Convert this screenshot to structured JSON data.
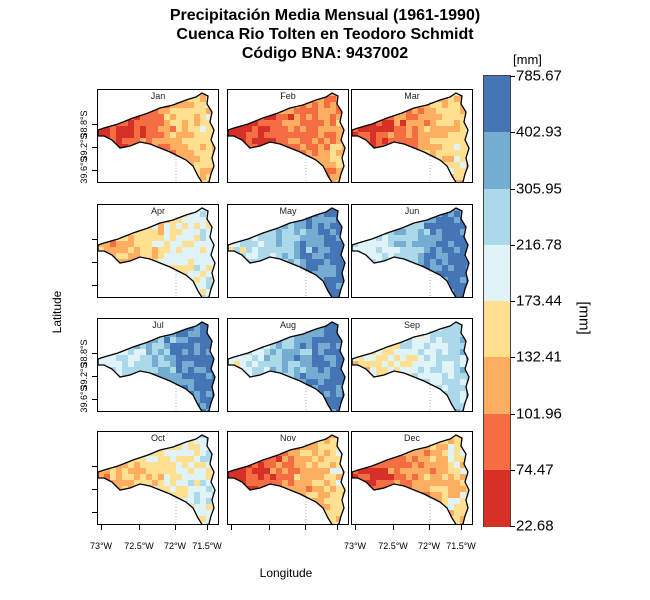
{
  "title": {
    "line1": "Precipitación Media Mensual (1961-1990)",
    "line2": "Cuenca Rio Tolten en Teodoro Schmidt",
    "line3": "Código BNA: 9437002"
  },
  "axes": {
    "xlabel": "Longitude",
    "ylabel": "Latitude",
    "x_ticks": [
      "73°W",
      "72.5°W",
      "72°W",
      "71.5°W"
    ],
    "y_ticks": [
      "39.6°S",
      "39.2°S",
      "38.8°S"
    ]
  },
  "legend": {
    "unit_top": "[mm]",
    "unit_side": "[mm]",
    "breaks": [
      "785.67",
      "402.93",
      "305.95",
      "216.78",
      "173.44",
      "132.41",
      "101.96",
      "74.47",
      "22.68"
    ],
    "colors": [
      "#4575b4",
      "#74add1",
      "#abd9e9",
      "#e0f3f8",
      "#fee090",
      "#fdae61",
      "#f46d43",
      "#d73027"
    ]
  },
  "chart_data": {
    "type": "heatmap",
    "title": "Precipitación Media Mensual (1961-1990) Cuenca Rio Tolten en Teodoro Schmidt Código BNA: 9437002",
    "xlabel": "Longitude",
    "ylabel": "Latitude",
    "color_scale_unit": "[mm]",
    "class_breaks": [
      22.68,
      74.47,
      101.96,
      132.41,
      173.44,
      216.78,
      305.95,
      402.93,
      785.67
    ],
    "panels": [
      {
        "month": "Jan",
        "west_class": 0,
        "east_class": 3
      },
      {
        "month": "Feb",
        "west_class": 0,
        "east_class": 2
      },
      {
        "month": "Mar",
        "west_class": 0,
        "east_class": 3
      },
      {
        "month": "Apr",
        "west_class": 2,
        "east_class": 4
      },
      {
        "month": "May",
        "west_class": 4,
        "east_class": 7
      },
      {
        "month": "Jun",
        "west_class": 4,
        "east_class": 7
      },
      {
        "month": "Jul",
        "west_class": 4,
        "east_class": 7
      },
      {
        "month": "Aug",
        "west_class": 4,
        "east_class": 7
      },
      {
        "month": "Sep",
        "west_class": 3,
        "east_class": 5
      },
      {
        "month": "Oct",
        "west_class": 2,
        "east_class": 4
      },
      {
        "month": "Nov",
        "west_class": 0,
        "east_class": 3
      },
      {
        "month": "Dec",
        "west_class": 0,
        "east_class": 3
      }
    ]
  }
}
